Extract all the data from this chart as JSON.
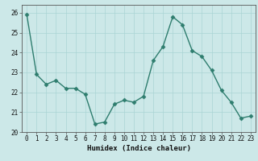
{
  "x": [
    0,
    1,
    2,
    3,
    4,
    5,
    6,
    7,
    8,
    9,
    10,
    11,
    12,
    13,
    14,
    15,
    16,
    17,
    18,
    19,
    20,
    21,
    22,
    23
  ],
  "y": [
    25.9,
    22.9,
    22.4,
    22.6,
    22.2,
    22.2,
    21.9,
    20.4,
    20.5,
    21.4,
    21.6,
    21.5,
    21.8,
    23.6,
    24.3,
    25.8,
    25.4,
    24.1,
    23.8,
    23.1,
    22.1,
    21.5,
    20.7,
    20.8
  ],
  "line_color": "#2e7d6e",
  "marker": "D",
  "marker_size": 2.5,
  "bg_color": "#cce8e8",
  "grid_color": "#aad4d4",
  "xlabel": "Humidex (Indice chaleur)",
  "ylim": [
    20,
    26.4
  ],
  "xlim": [
    -0.5,
    23.5
  ],
  "yticks": [
    20,
    21,
    22,
    23,
    24,
    25,
    26
  ],
  "xticks": [
    0,
    1,
    2,
    3,
    4,
    5,
    6,
    7,
    8,
    9,
    10,
    11,
    12,
    13,
    14,
    15,
    16,
    17,
    18,
    19,
    20,
    21,
    22,
    23
  ],
  "xlabel_fontsize": 6.5,
  "tick_fontsize": 5.5,
  "line_width": 1.0
}
